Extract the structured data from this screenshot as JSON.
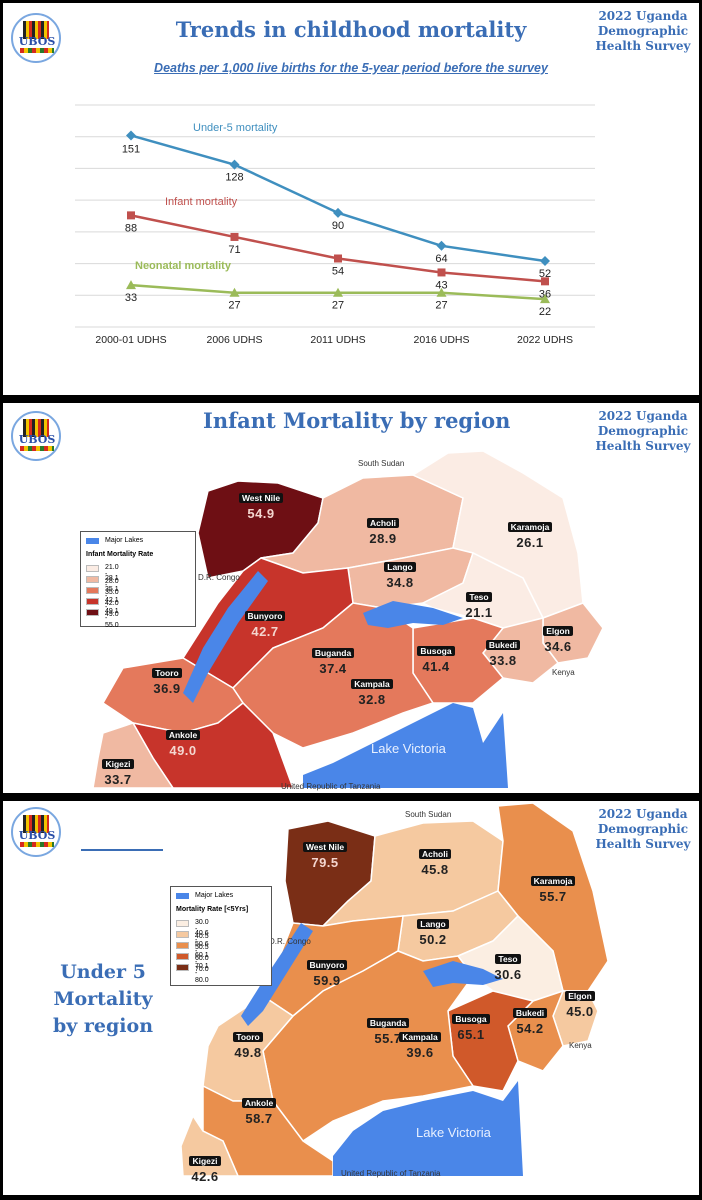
{
  "survey_label": [
    "2022 Uganda",
    "Demographic",
    "Health Survey"
  ],
  "logo_text": "UBOS",
  "colors": {
    "under5": "#3f8fbf",
    "infant": "#c0504d",
    "neonatal": "#9bbb59",
    "lake": "#4a86e8"
  },
  "slide1": {
    "title": "Trends in childhood mortality",
    "subtitle": "Deaths per 1,000 live births for the 5-year period before the survey",
    "chart_data": {
      "type": "line",
      "categories": [
        "2000-01 UDHS",
        "2006 UDHS",
        "2011 UDHS",
        "2016 UDHS",
        "2022 UDHS"
      ],
      "series": [
        {
          "name": "Under-5 mortality",
          "values": [
            151,
            128,
            90,
            64,
            52
          ]
        },
        {
          "name": "Infant mortality",
          "values": [
            88,
            71,
            54,
            43,
            36
          ]
        },
        {
          "name": "Neonatal mortality",
          "values": [
            33,
            27,
            27,
            27,
            22
          ]
        }
      ],
      "ylim": [
        0,
        175
      ],
      "grid": true
    }
  },
  "slide2": {
    "title": "Infant Mortality by region",
    "legend": {
      "lakes": "Major Lakes",
      "title": "Infant Mortality Rate",
      "ranges": [
        "21.0 - 28.0",
        "28.1 - 35.0",
        "35.1 - 42.0",
        "42.1 - 49.0",
        "49.1 - 55.0"
      ],
      "colors": [
        "#fbece4",
        "#f0b9a2",
        "#e4795c",
        "#c7342b",
        "#6e0f14"
      ]
    },
    "labels": {
      "north": "South Sudan",
      "west": "D.R. Congo",
      "east": "Kenya",
      "south": "United Republic of Tanzania",
      "lake": "Lake Victoria"
    },
    "regions": [
      {
        "name": "West Nile",
        "value": "54.9"
      },
      {
        "name": "Acholi",
        "value": "28.9"
      },
      {
        "name": "Karamoja",
        "value": "26.1"
      },
      {
        "name": "Lango",
        "value": "34.8"
      },
      {
        "name": "Teso",
        "value": "21.1"
      },
      {
        "name": "Bunyoro",
        "value": "42.7"
      },
      {
        "name": "Elgon",
        "value": "34.6"
      },
      {
        "name": "Bukedi",
        "value": "33.8"
      },
      {
        "name": "Busoga",
        "value": "41.4"
      },
      {
        "name": "Buganda",
        "value": "37.4"
      },
      {
        "name": "Tooro",
        "value": "36.9"
      },
      {
        "name": "Kampala",
        "value": "32.8"
      },
      {
        "name": "Ankole",
        "value": "49.0"
      },
      {
        "name": "Kigezi",
        "value": "33.7"
      }
    ]
  },
  "slide3": {
    "title_lines": [
      "Under 5",
      "Mortality",
      "by region"
    ],
    "legend": {
      "lakes": "Major Lakes",
      "title": "Mortality Rate [<5Yrs]",
      "ranges": [
        "30.0 - 40.5",
        "40.6 - 50.5",
        "50.6 - 60.0",
        "60.1 - 70.0",
        "70.1 - 80.0"
      ],
      "colors": [
        "#fbeee2",
        "#f5c9a0",
        "#e98f4d",
        "#d0592a",
        "#7a2e16"
      ]
    },
    "labels": {
      "north": "South Sudan",
      "west": "D.R. Congo",
      "east": "Kenya",
      "south": "United Republic of Tanzania",
      "lake": "Lake Victoria"
    },
    "regions": [
      {
        "name": "West Nile",
        "value": "79.5"
      },
      {
        "name": "Acholi",
        "value": "45.8"
      },
      {
        "name": "Karamoja",
        "value": "55.7"
      },
      {
        "name": "Lango",
        "value": "50.2"
      },
      {
        "name": "Teso",
        "value": "30.6"
      },
      {
        "name": "Bunyoro",
        "value": "59.9"
      },
      {
        "name": "Elgon",
        "value": "45.0"
      },
      {
        "name": "Bukedi",
        "value": "54.2"
      },
      {
        "name": "Busoga",
        "value": "65.1"
      },
      {
        "name": "Buganda",
        "value": "55.7"
      },
      {
        "name": "Tooro",
        "value": "49.8"
      },
      {
        "name": "Kampala",
        "value": "39.6"
      },
      {
        "name": "Ankole",
        "value": "58.7"
      },
      {
        "name": "Kigezi",
        "value": "42.6"
      }
    ]
  }
}
